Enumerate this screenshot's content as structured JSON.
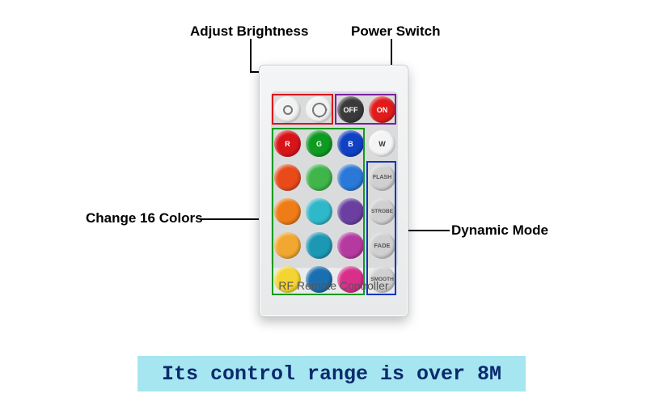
{
  "labels": {
    "brightness": "Adjust Brightness",
    "power": "Power Switch",
    "colors": "Change 16 Colors",
    "dynamic": "Dynamic Mode"
  },
  "remote": {
    "footer": "RF Remote Controller",
    "top_row": [
      {
        "bg": "#f2f2f2",
        "type": "sun_small"
      },
      {
        "bg": "#f2f2f2",
        "type": "sun_large"
      },
      {
        "bg": "#3a3a3a",
        "text": "OFF"
      },
      {
        "bg": "#e11b1b",
        "text": "ON"
      }
    ],
    "grid": [
      [
        {
          "bg": "#d8141b",
          "text": "R"
        },
        {
          "bg": "#0f9a21",
          "text": "G"
        },
        {
          "bg": "#1040c4",
          "text": "B"
        },
        {
          "bg": "#f4f4f4",
          "text": "W",
          "fg": "#333"
        }
      ],
      [
        {
          "bg": "#e84a1a"
        },
        {
          "bg": "#3fb54a"
        },
        {
          "bg": "#2a78d8"
        },
        {
          "bg": "#d0d0d0",
          "text": "FLASH",
          "fg": "#555",
          "fs": "7px"
        }
      ],
      [
        {
          "bg": "#ef7c16"
        },
        {
          "bg": "#2fb8c9"
        },
        {
          "bg": "#6b3fa0"
        },
        {
          "bg": "#d0d0d0",
          "text": "STROBE",
          "fg": "#555",
          "fs": "6.5px"
        }
      ],
      [
        {
          "bg": "#f2a730"
        },
        {
          "bg": "#1c98b5"
        },
        {
          "bg": "#b53aa0"
        },
        {
          "bg": "#d0d0d0",
          "text": "FADE",
          "fg": "#555",
          "fs": "7.5px"
        }
      ],
      [
        {
          "bg": "#f4d430"
        },
        {
          "bg": "#1a6fb0"
        },
        {
          "bg": "#d82f8b"
        },
        {
          "bg": "#d0d0d0",
          "text": "SMOOTH",
          "fg": "#555",
          "fs": "6.5px"
        }
      ]
    ]
  },
  "callout_boxes": {
    "brightness": {
      "color": "#d8141b"
    },
    "power": {
      "color": "#7a1fa0"
    },
    "colors": {
      "color": "#0f9a21"
    },
    "dynamic": {
      "color": "#1234c0"
    }
  },
  "banner": "Its control range is over 8M"
}
